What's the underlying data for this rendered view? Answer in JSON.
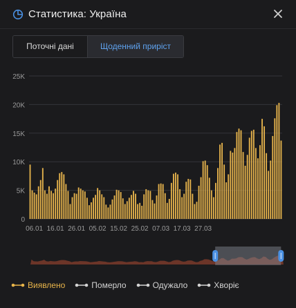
{
  "header": {
    "title": "Статистика: Україна",
    "icon": "pie-chart-icon",
    "close_icon": "close-icon"
  },
  "tabs": [
    {
      "label": "Поточні дані",
      "active": false
    },
    {
      "label": "Щоденний приріст",
      "active": true
    }
  ],
  "colors": {
    "background": "#1b1b1d",
    "accent_bar": "#e2b04b",
    "tab_active_text": "#5fa3f0",
    "grid": "#34353a",
    "axis_text": "#9a9a9a",
    "brush_area": "#7a3a2a",
    "brush_handle": "#4a90e2"
  },
  "chart_data": {
    "type": "bar",
    "series": [
      {
        "name": "Виявлено",
        "values": [
          9500,
          5000,
          4600,
          4300,
          5700,
          6800,
          8900,
          5000,
          4400,
          5700,
          4900,
          4500,
          5300,
          6800,
          8000,
          8200,
          7800,
          6100,
          4900,
          2600,
          3800,
          4500,
          4400,
          5500,
          5300,
          5000,
          4800,
          3700,
          2400,
          2900,
          3700,
          4200,
          5400,
          5000,
          4300,
          3800,
          2500,
          2000,
          2500,
          3400,
          4100,
          5100,
          5000,
          4700,
          3600,
          2600,
          3100,
          3700,
          4200,
          4900,
          4400,
          2600,
          2800,
          2300,
          4300,
          5200,
          5000,
          4900,
          3300,
          2700,
          4100,
          6100,
          6200,
          6100,
          4500,
          2800,
          3500,
          6300,
          7900,
          8100,
          7800,
          5200,
          3800,
          4400,
          6500,
          7000,
          6900,
          4400,
          2600,
          3000,
          5800,
          7300,
          10100,
          10200,
          9400,
          7200,
          5000,
          3800,
          6300,
          8900,
          13000,
          13300,
          9500,
          6400,
          7800,
          11900,
          11600,
          12400,
          15200,
          15800,
          15500,
          11700,
          9300,
          11200,
          14200,
          15400,
          15600,
          12400,
          10600,
          12900,
          17500,
          16200,
          11500,
          8400,
          10200,
          14500,
          17600,
          19900,
          20300,
          13700
        ]
      }
    ],
    "x_tick_labels": [
      "06.01",
      "16.01",
      "26.01",
      "05.02",
      "15.02",
      "25.02",
      "07.03",
      "17.03",
      "27.03"
    ],
    "y_tick_labels": [
      "0",
      "5K",
      "10K",
      "15K",
      "20K",
      "25K"
    ],
    "ylim": [
      0,
      25000
    ],
    "grid": true,
    "legend_position": "bottom-left",
    "legend": [
      {
        "label": "Виявлено",
        "active": true
      },
      {
        "label": "Померло",
        "active": false
      },
      {
        "label": "Одужало",
        "active": false
      },
      {
        "label": "Хворіє",
        "active": false
      }
    ],
    "brush_selection_fraction": [
      0.73,
      0.99
    ]
  }
}
